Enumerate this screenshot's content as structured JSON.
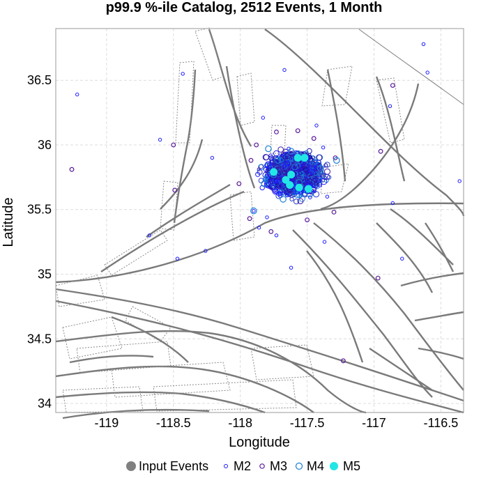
{
  "chart_data": {
    "type": "scatter",
    "title": "p99.9 %-ile Catalog, 2512 Events, 1 Month",
    "xlabel": "Longitude",
    "ylabel": "Latitude",
    "xlim": [
      -119.38,
      -116.33
    ],
    "ylim": [
      33.93,
      36.9
    ],
    "xticks": [
      -119,
      -118.5,
      -118,
      -117.5,
      -117,
      -116.5
    ],
    "xtick_labels": [
      "-119",
      "-118.5",
      "-118",
      "-117.5",
      "-117",
      "-116.5"
    ],
    "yticks": [
      34,
      34.5,
      35,
      35.5,
      36,
      36.5
    ],
    "ytick_labels": [
      "34",
      "34.5",
      "35",
      "35.5",
      "36",
      "36.5"
    ],
    "grid": true,
    "legend_placement": "bottom",
    "legend": [
      "Input Events",
      "M2",
      "M3",
      "M4",
      "M5"
    ],
    "series": [
      {
        "name": "M2",
        "color": "#1a1aff",
        "points": [
          [
            -119.22,
            36.39
          ],
          [
            -118.6,
            36.04
          ],
          [
            -118.43,
            36.55
          ],
          [
            -118.68,
            35.3
          ],
          [
            -118.47,
            35.12
          ],
          [
            -118.26,
            35.18
          ],
          [
            -118.21,
            35.9
          ],
          [
            -117.83,
            36.21
          ],
          [
            -117.9,
            35.49
          ],
          [
            -117.8,
            35.44
          ],
          [
            -117.86,
            35.36
          ],
          [
            -117.73,
            35.3
          ],
          [
            -117.62,
            35.05
          ],
          [
            -117.37,
            35.25
          ],
          [
            -117.43,
            36.15
          ],
          [
            -117.38,
            35.98
          ],
          [
            -116.86,
            35.55
          ],
          [
            -116.79,
            35.12
          ],
          [
            -116.88,
            36.3
          ],
          [
            -116.6,
            36.56
          ],
          [
            -116.63,
            36.78
          ],
          [
            -116.36,
            35.72
          ],
          [
            -117.67,
            36.58
          ],
          [
            -117.35,
            35.6
          ]
        ]
      },
      {
        "name": "M3",
        "color": "#5a1a9a",
        "points": [
          [
            -119.26,
            35.81
          ],
          [
            -118.49,
            35.65
          ],
          [
            -118.5,
            36.0
          ],
          [
            -118.01,
            35.7
          ],
          [
            -117.93,
            35.43
          ],
          [
            -117.77,
            35.33
          ],
          [
            -117.5,
            35.42
          ],
          [
            -117.3,
            35.48
          ],
          [
            -117.29,
            35.9
          ],
          [
            -117.73,
            36.1
          ],
          [
            -117.57,
            36.11
          ],
          [
            -116.95,
            35.95
          ],
          [
            -116.97,
            34.97
          ],
          [
            -117.23,
            34.33
          ],
          [
            -116.86,
            36.46
          ],
          [
            -117.45,
            36.05
          ],
          [
            -117.92,
            35.88
          ],
          [
            -117.88,
            36.0
          ]
        ]
      },
      {
        "name": "M4",
        "color": "#1a7fd6",
        "points": [
          [
            -117.9,
            35.49
          ],
          [
            -117.75,
            35.77
          ],
          [
            -117.72,
            35.88
          ],
          [
            -117.79,
            35.97
          ],
          [
            -117.56,
            35.71
          ],
          [
            -117.48,
            35.62
          ],
          [
            -117.4,
            35.82
          ],
          [
            -117.68,
            35.58
          ],
          [
            -117.28,
            35.88
          ],
          [
            -117.82,
            35.7
          ],
          [
            -117.62,
            35.95
          ]
        ]
      },
      {
        "name": "M5",
        "color": "#22e6e6",
        "points": [
          [
            -117.75,
            35.79
          ],
          [
            -117.62,
            35.77
          ],
          [
            -117.57,
            35.9
          ],
          [
            -117.52,
            35.9
          ],
          [
            -117.63,
            35.69
          ],
          [
            -117.56,
            35.67
          ],
          [
            -117.49,
            35.66
          ],
          [
            -117.66,
            35.73
          ]
        ]
      }
    ],
    "cluster": {
      "center": [
        -117.6,
        35.77
      ],
      "radius": [
        0.22,
        0.17
      ],
      "color": "#1a12b0"
    }
  }
}
